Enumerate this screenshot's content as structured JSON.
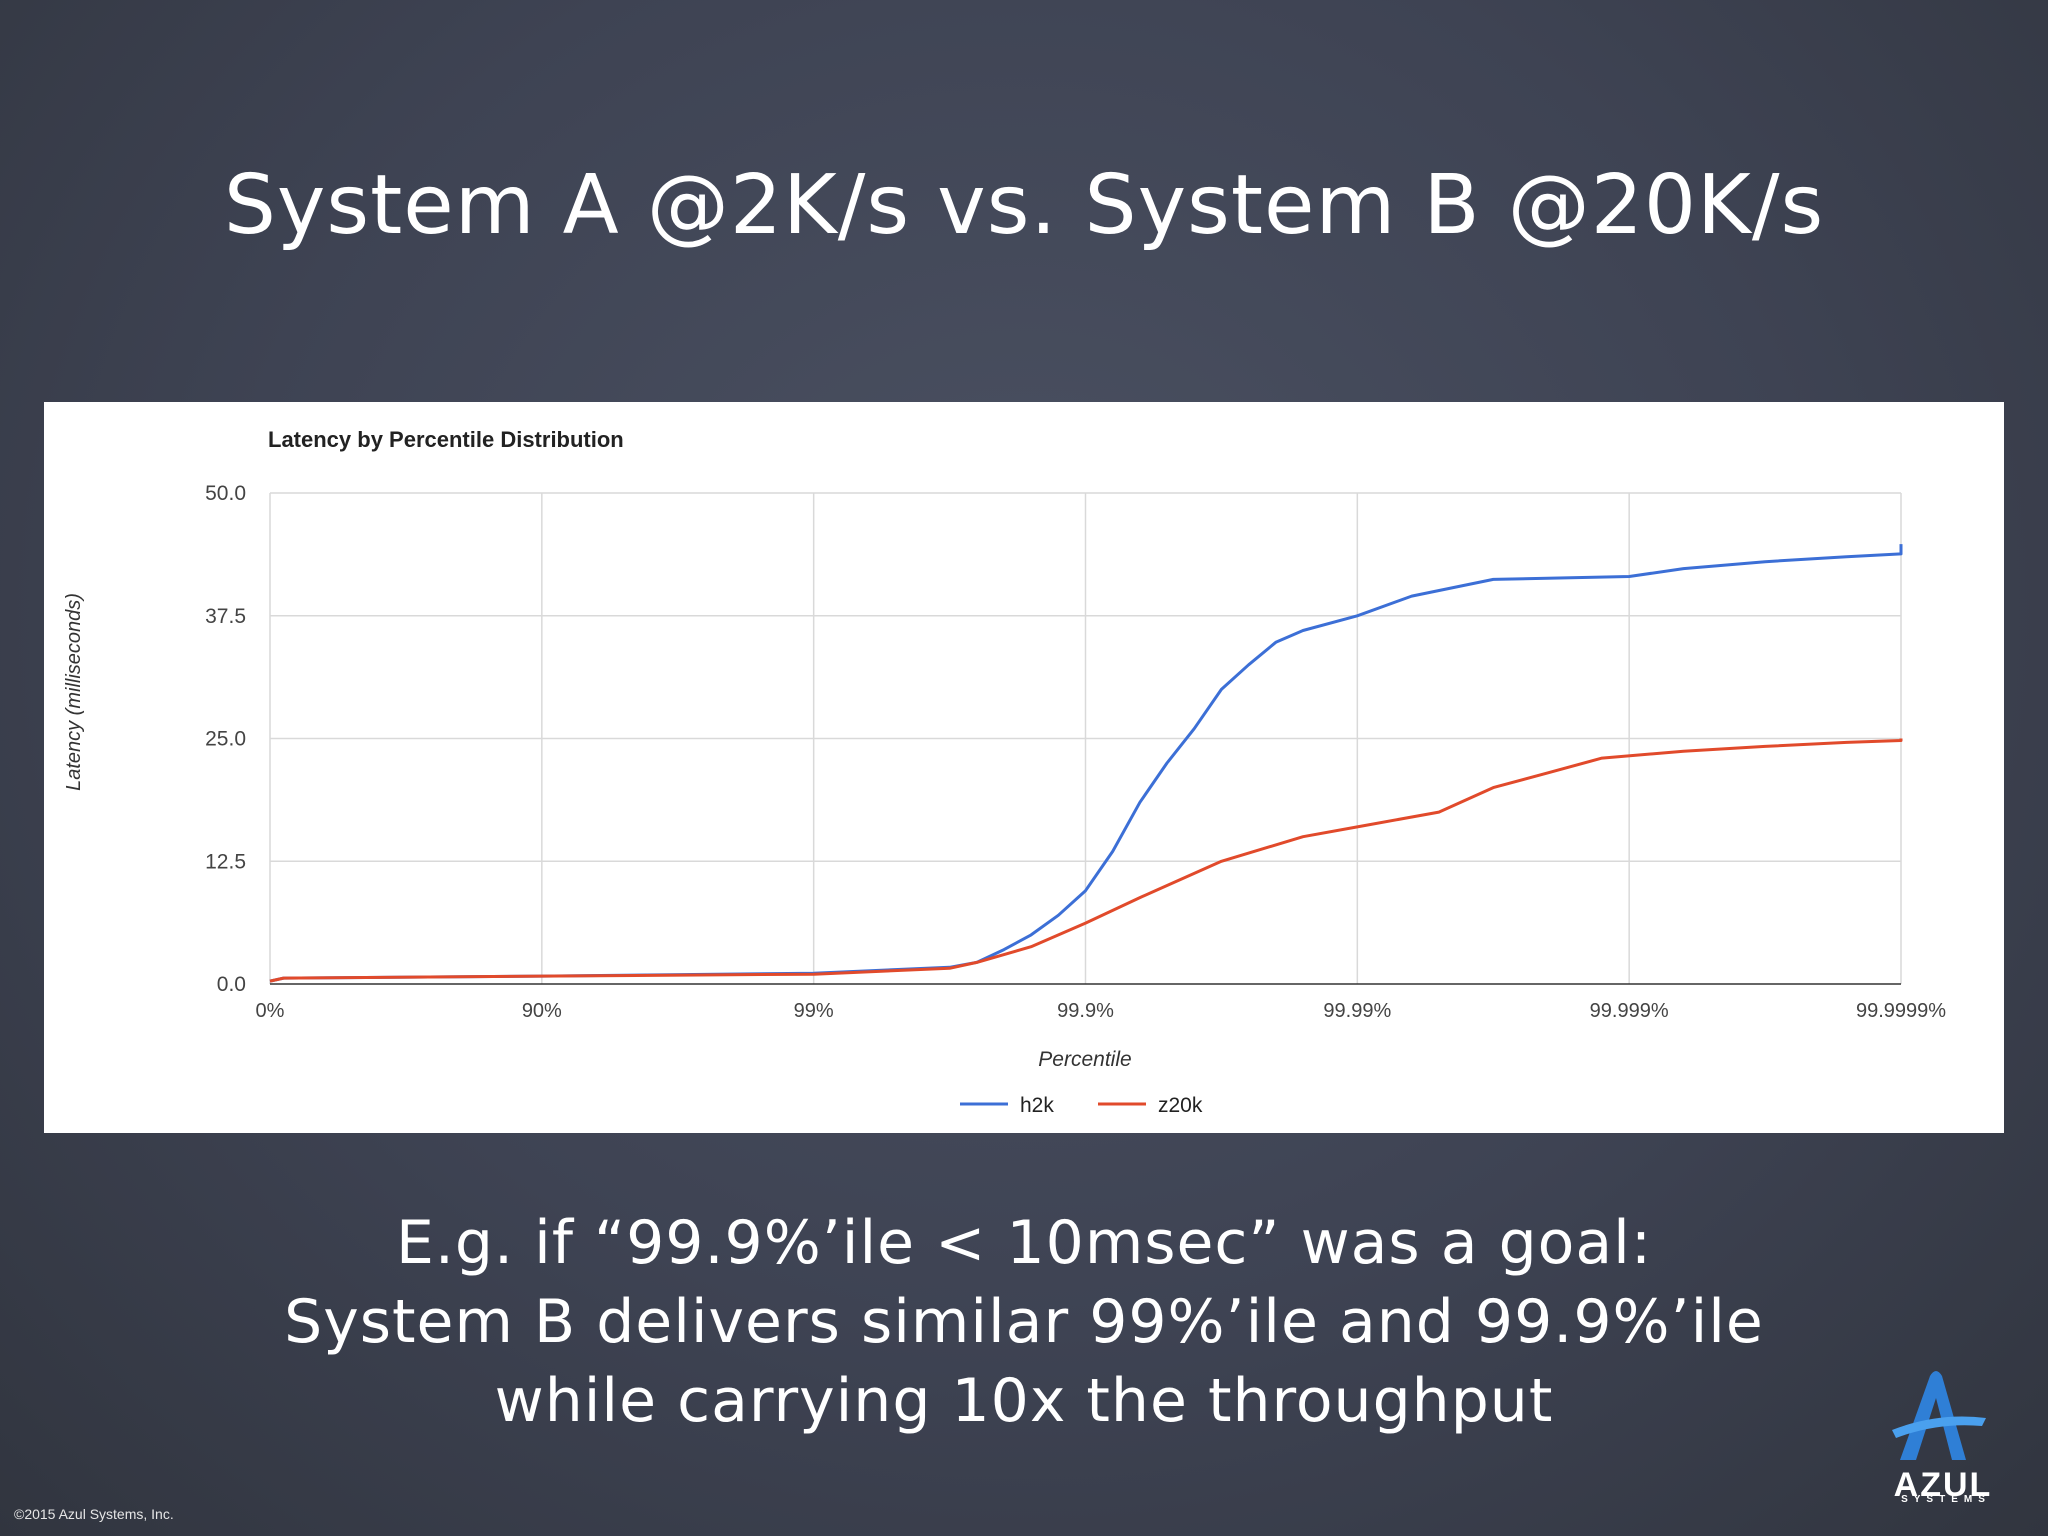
{
  "slide": {
    "title": "System A @2K/s vs. System B @20K/s",
    "caption_lines": [
      "E.g. if “99.9%’ile < 10msec” was a goal:",
      "System B delivers similar 99%’ile and 99.9%’ile",
      "while carrying 10x the throughput"
    ],
    "copyright": "©2015 Azul Systems, Inc.",
    "logo": {
      "word": "AZUL",
      "sub": "SYSTEMS",
      "icon": "azul-a-icon",
      "color": "#2f7fd6"
    }
  },
  "chart_data": {
    "type": "line",
    "title": "Latency by Percentile Distribution",
    "xlabel": "Percentile",
    "ylabel": "Latency (milliseconds)",
    "x_scale": "log-of-nines",
    "xlim": [
      0,
      6
    ],
    "ylim": [
      0,
      50
    ],
    "x_ticks": [
      "0%",
      "90%",
      "99%",
      "99.9%",
      "99.99%",
      "99.999%",
      "99.9999%"
    ],
    "y_ticks": [
      "0.0",
      "12.5",
      "25.0",
      "37.5",
      "50.0"
    ],
    "grid": true,
    "legend_position": "bottom",
    "series": [
      {
        "name": "h2k",
        "color": "#3c6fd6",
        "points": [
          [
            0,
            0.3
          ],
          [
            0.05,
            0.6
          ],
          [
            1,
            0.8
          ],
          [
            2,
            1.1
          ],
          [
            2.5,
            1.7
          ],
          [
            2.6,
            2.2
          ],
          [
            2.7,
            3.5
          ],
          [
            2.8,
            5.0
          ],
          [
            2.9,
            7.0
          ],
          [
            3.0,
            9.5
          ],
          [
            3.1,
            13.5
          ],
          [
            3.2,
            18.5
          ],
          [
            3.3,
            22.5
          ],
          [
            3.4,
            26.0
          ],
          [
            3.5,
            30.0
          ],
          [
            3.6,
            32.5
          ],
          [
            3.7,
            34.8
          ],
          [
            3.8,
            36.0
          ],
          [
            4.0,
            37.5
          ],
          [
            4.2,
            39.5
          ],
          [
            4.5,
            41.2
          ],
          [
            5.0,
            41.5
          ],
          [
            5.2,
            42.3
          ],
          [
            5.5,
            43.0
          ],
          [
            5.8,
            43.5
          ],
          [
            6.0,
            43.8
          ],
          [
            6.3,
            44.0
          ],
          [
            6.6,
            44.8
          ]
        ]
      },
      {
        "name": "z20k",
        "color": "#e14a2b",
        "points": [
          [
            0,
            0.3
          ],
          [
            0.05,
            0.6
          ],
          [
            1,
            0.8
          ],
          [
            2,
            1.0
          ],
          [
            2.5,
            1.6
          ],
          [
            2.6,
            2.2
          ],
          [
            2.8,
            3.8
          ],
          [
            3.0,
            6.2
          ],
          [
            3.2,
            8.8
          ],
          [
            3.5,
            12.5
          ],
          [
            3.8,
            15.0
          ],
          [
            4.0,
            16.0
          ],
          [
            4.3,
            17.5
          ],
          [
            4.5,
            20.0
          ],
          [
            4.7,
            21.5
          ],
          [
            4.9,
            23.0
          ],
          [
            5.2,
            23.7
          ],
          [
            5.5,
            24.2
          ],
          [
            5.8,
            24.6
          ],
          [
            6.0,
            24.8
          ],
          [
            6.5,
            25.0
          ],
          [
            6.8,
            25.0
          ]
        ]
      }
    ]
  }
}
